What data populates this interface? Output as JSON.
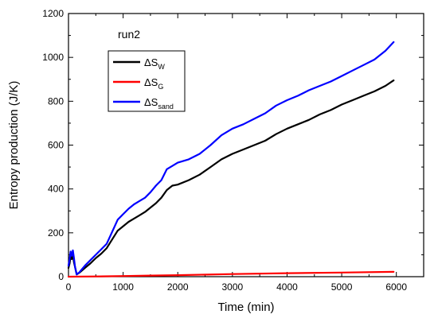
{
  "chart_data": {
    "type": "line",
    "title": "",
    "annotation": "run2",
    "xlabel": "Time (min)",
    "ylabel": "Entropy production (J/K)",
    "xlim": [
      0,
      6500
    ],
    "ylim": [
      0,
      1200
    ],
    "xticks": [
      0,
      1000,
      2000,
      3000,
      4000,
      5000,
      6000
    ],
    "yticks": [
      0,
      200,
      400,
      600,
      800,
      1000,
      1200
    ],
    "grid": false,
    "legend_position": "top-left (inside plot, below annotation)",
    "series": [
      {
        "name": "ΔS",
        "name_base": "ΔS",
        "name_sub": "W",
        "color": "#000000",
        "x": [
          0,
          20,
          40,
          60,
          80,
          100,
          120,
          150,
          200,
          300,
          400,
          500,
          600,
          700,
          800,
          900,
          1000,
          1100,
          1200,
          1300,
          1400,
          1500,
          1600,
          1700,
          1800,
          1900,
          2000,
          2200,
          2400,
          2600,
          2800,
          3000,
          3200,
          3400,
          3600,
          3800,
          4000,
          4200,
          4400,
          4600,
          4800,
          5000,
          5200,
          5400,
          5600,
          5800,
          5950
        ],
        "y": [
          40,
          60,
          95,
          80,
          100,
          65,
          45,
          10,
          18,
          40,
          60,
          85,
          105,
          130,
          170,
          210,
          230,
          250,
          265,
          280,
          295,
          315,
          335,
          360,
          395,
          415,
          420,
          440,
          465,
          500,
          535,
          560,
          580,
          600,
          620,
          650,
          675,
          695,
          715,
          740,
          760,
          785,
          805,
          825,
          845,
          870,
          895
        ]
      },
      {
        "name": "ΔS",
        "name_base": "ΔS",
        "name_sub": "G",
        "color": "#ff0000",
        "x": [
          0,
          500,
          1000,
          1500,
          2000,
          3000,
          4000,
          5000,
          5950
        ],
        "y": [
          0,
          1,
          3,
          5,
          7,
          12,
          16,
          19,
          22
        ]
      },
      {
        "name": "ΔS",
        "name_base": "ΔS",
        "name_sub": "sand",
        "color": "#0000ff",
        "x": [
          0,
          20,
          40,
          60,
          80,
          100,
          120,
          150,
          200,
          300,
          400,
          500,
          600,
          700,
          800,
          900,
          1000,
          1100,
          1200,
          1300,
          1400,
          1500,
          1600,
          1700,
          1800,
          1900,
          2000,
          2200,
          2400,
          2600,
          2800,
          3000,
          3200,
          3400,
          3600,
          3800,
          4000,
          4200,
          4400,
          4600,
          4800,
          5000,
          5200,
          5400,
          5600,
          5800,
          5950
        ],
        "y": [
          50,
          80,
          115,
          95,
          120,
          85,
          45,
          10,
          20,
          50,
          75,
          100,
          125,
          150,
          205,
          260,
          285,
          310,
          330,
          345,
          360,
          385,
          415,
          440,
          490,
          505,
          520,
          535,
          560,
          600,
          645,
          675,
          695,
          720,
          745,
          780,
          805,
          825,
          850,
          870,
          890,
          915,
          940,
          965,
          990,
          1030,
          1070
        ]
      }
    ]
  }
}
